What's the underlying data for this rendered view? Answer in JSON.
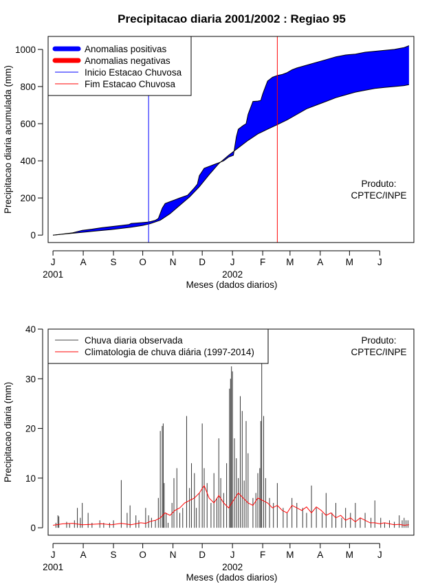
{
  "title": "Precipitacao diaria 2001/2002 : Regiao 95",
  "product_note": [
    "Produto:",
    "CPTEC/INPE"
  ],
  "colors": {
    "positive": "#0000ff",
    "negative": "#ff0000",
    "onset": "#0000ff",
    "end": "#ff0000",
    "observed": "#000000",
    "climatology": "#ff0000",
    "axis": "#000000"
  },
  "chart_data": [
    {
      "type": "area",
      "title": "Precipitacao diaria 2001/2002 : Regiao 95",
      "xlabel": "Meses (dados diarios)",
      "ylabel": "Precipitacao diaria acumulada (mm)",
      "x_unit": "days since 2001-07-01",
      "xlim": [
        -5,
        370
      ],
      "ylim": [
        -40,
        1070
      ],
      "month_ticks": [
        0,
        31,
        62,
        92,
        123,
        153,
        184,
        215,
        243,
        274,
        304,
        335
      ],
      "month_labels": [
        "J",
        "A",
        "S",
        "O",
        "N",
        "D",
        "J",
        "F",
        "M",
        "A",
        "M",
        "J"
      ],
      "year_labels": [
        {
          "x": 0,
          "label": "2001"
        },
        {
          "x": 184,
          "label": "2002"
        }
      ],
      "yticks": [
        0,
        200,
        400,
        600,
        800,
        1000
      ],
      "legend": [
        {
          "label": "Anomalias positivas",
          "kind": "thick",
          "color": "#0000ff"
        },
        {
          "label": "Anomalias negativas",
          "kind": "thick",
          "color": "#ff0000"
        },
        {
          "label": "Inicio Estacao Chuvosa",
          "kind": "thin",
          "color": "#0000ff"
        },
        {
          "label": "Fim Estacao Chuvosa",
          "kind": "thin",
          "color": "#ff0000"
        }
      ],
      "onset_day": 98,
      "end_day": 230,
      "series": [
        {
          "name": "Precipitacao acumulada observada",
          "x": [
            0,
            10,
            20,
            30,
            40,
            50,
            60,
            70,
            78,
            80,
            90,
            97,
            100,
            105,
            108,
            112,
            115,
            120,
            125,
            130,
            138,
            145,
            148,
            150,
            155,
            160,
            165,
            170,
            175,
            180,
            185,
            188,
            190,
            195,
            198,
            200,
            205,
            210,
            213,
            215,
            220,
            225,
            230,
            235,
            240,
            245,
            250,
            260,
            270,
            280,
            290,
            300,
            310,
            320,
            330,
            340,
            350,
            360,
            365
          ],
          "values": [
            0,
            6,
            12,
            26,
            32,
            40,
            46,
            52,
            57,
            63,
            67,
            70,
            73,
            80,
            90,
            145,
            170,
            180,
            190,
            200,
            215,
            255,
            275,
            320,
            360,
            370,
            380,
            390,
            400,
            420,
            430,
            530,
            570,
            590,
            600,
            650,
            720,
            722,
            725,
            760,
            830,
            850,
            860,
            865,
            875,
            890,
            900,
            915,
            930,
            945,
            960,
            970,
            975,
            985,
            990,
            995,
            1000,
            1010,
            1020
          ]
        },
        {
          "name": "Climatologia acumulada",
          "x": [
            0,
            20,
            40,
            60,
            80,
            92,
            100,
            110,
            120,
            130,
            140,
            150,
            160,
            170,
            180,
            190,
            200,
            210,
            220,
            230,
            240,
            250,
            260,
            270,
            280,
            290,
            300,
            310,
            320,
            330,
            340,
            350,
            360,
            365
          ],
          "values": [
            0,
            10,
            20,
            30,
            42,
            52,
            62,
            80,
            115,
            160,
            205,
            260,
            325,
            385,
            430,
            470,
            510,
            545,
            570,
            595,
            620,
            650,
            680,
            700,
            720,
            740,
            755,
            770,
            780,
            790,
            795,
            800,
            805,
            810
          ]
        }
      ]
    },
    {
      "type": "line",
      "xlabel": "Meses (dados diarios)",
      "ylabel": "Precipitacao diaria (mm)",
      "x_unit": "days since 2001-07-01",
      "xlim": [
        -5,
        370
      ],
      "ylim": [
        -1.5,
        40
      ],
      "month_ticks": [
        0,
        31,
        62,
        92,
        123,
        153,
        184,
        215,
        243,
        274,
        304,
        335
      ],
      "month_labels": [
        "J",
        "A",
        "S",
        "O",
        "N",
        "D",
        "J",
        "F",
        "M",
        "A",
        "M",
        "J"
      ],
      "year_labels": [
        {
          "x": 0,
          "label": "2001"
        },
        {
          "x": 184,
          "label": "2002"
        }
      ],
      "yticks": [
        0,
        10,
        20,
        30,
        40
      ],
      "legend": [
        {
          "label": "Chuva diaria observada",
          "color": "#000000"
        },
        {
          "label": "Climatologia de chuva diária (1997-2014)",
          "color": "#ff0000"
        }
      ],
      "bars": {
        "name": "Chuva diaria observada",
        "x": [
          3,
          5,
          6,
          14,
          17,
          22,
          25,
          28,
          30,
          36,
          40,
          48,
          52,
          58,
          62,
          70,
          76,
          79,
          85,
          88,
          95,
          98,
          101,
          105,
          108,
          110,
          112,
          113,
          114,
          116,
          118,
          122,
          124,
          127,
          130,
          133,
          137,
          140,
          142,
          145,
          147,
          150,
          153,
          155,
          158,
          162,
          165,
          168,
          170,
          172,
          175,
          178,
          181,
          182,
          183,
          184,
          186,
          188,
          190,
          192,
          194,
          196,
          198,
          200,
          205,
          208,
          210,
          212,
          213,
          214,
          216,
          218,
          222,
          226,
          230,
          236,
          240,
          245,
          250,
          256,
          260,
          265,
          270,
          276,
          280,
          286,
          290,
          296,
          300,
          305,
          310,
          315,
          320,
          326,
          330,
          336,
          340,
          345,
          350,
          355,
          358,
          360,
          362,
          364
        ],
        "values": [
          1,
          2.5,
          2.3,
          1.2,
          0.8,
          1.5,
          4,
          2,
          5,
          3,
          1,
          1.5,
          1,
          1,
          1.5,
          9.6,
          3,
          4.5,
          2.5,
          1.5,
          4,
          2.5,
          2,
          1.5,
          6,
          19.5,
          20.5,
          21,
          9,
          3,
          1,
          5,
          10,
          12,
          3,
          4,
          22.5,
          8,
          13,
          11,
          4,
          7,
          21,
          12,
          9,
          5,
          11,
          6,
          18,
          10,
          7,
          13,
          28,
          30,
          32.5,
          31.5,
          18,
          14,
          10,
          26.5,
          23.5,
          9.5,
          21.5,
          15,
          6,
          7,
          11,
          12,
          21.5,
          33.5,
          22.5,
          10,
          6,
          5,
          9,
          4,
          3,
          6,
          5,
          4,
          3,
          8.5,
          4,
          3,
          7,
          3,
          5,
          2,
          4,
          3,
          5,
          2,
          3,
          2,
          5.5,
          2,
          1,
          1.5,
          1.2,
          2.5,
          1.5,
          2,
          1.5,
          1.5
        ]
      },
      "line": {
        "name": "Climatologia de chuva diária (1997-2014)",
        "x": [
          0,
          10,
          20,
          30,
          40,
          50,
          60,
          70,
          80,
          90,
          95,
          100,
          105,
          110,
          115,
          120,
          125,
          130,
          135,
          140,
          145,
          150,
          155,
          160,
          165,
          170,
          175,
          180,
          185,
          190,
          195,
          200,
          205,
          210,
          215,
          220,
          225,
          230,
          235,
          240,
          245,
          250,
          255,
          260,
          265,
          270,
          275,
          280,
          285,
          290,
          295,
          300,
          305,
          310,
          315,
          320,
          325,
          330,
          335,
          340,
          345,
          350,
          355,
          360,
          365
        ],
        "values": [
          0.5,
          0.8,
          0.9,
          0.6,
          0.7,
          0.8,
          0.6,
          0.9,
          0.6,
          1,
          0.9,
          1.3,
          1.5,
          2,
          3,
          2.5,
          3.5,
          4,
          5,
          5.5,
          6,
          7,
          8.5,
          6,
          5,
          6.5,
          5,
          4,
          5.5,
          7,
          6,
          5,
          4.5,
          6,
          5.5,
          5,
          4,
          4.5,
          3.5,
          3,
          4.5,
          4,
          3.5,
          4.2,
          3,
          4.2,
          3.5,
          2.5,
          3,
          2,
          2.5,
          1.5,
          2,
          1.2,
          2,
          1.5,
          1,
          1,
          0.8,
          1,
          0.8,
          0.6,
          0.7,
          0.5,
          0.6
        ]
      }
    }
  ]
}
